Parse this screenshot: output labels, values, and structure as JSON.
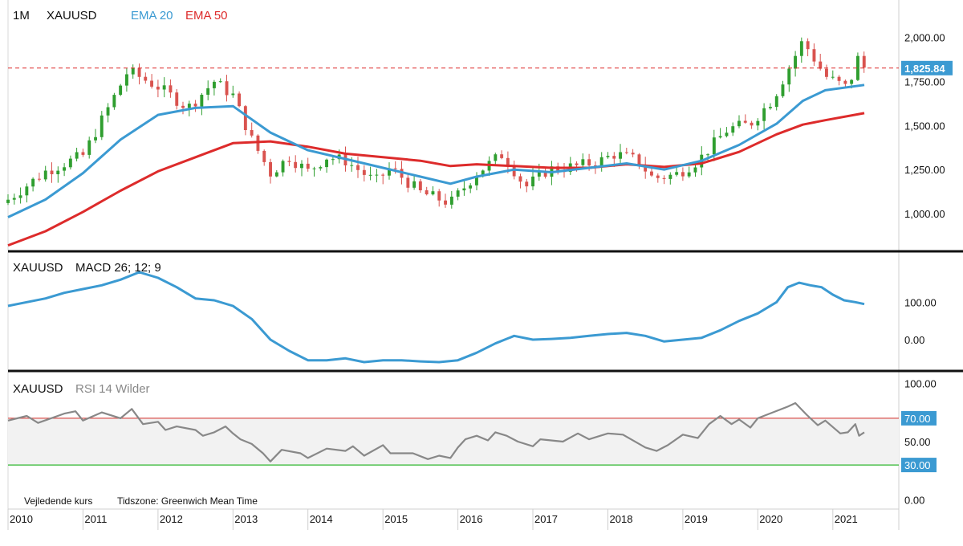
{
  "chart_data": [
    {
      "type": "candlestick",
      "title_interval": "1M",
      "title_symbol": "XAUUSD",
      "legend": [
        {
          "name": "EMA 20",
          "color": "#3b9ad2"
        },
        {
          "name": "EMA 50",
          "color": "#dd2b2b"
        }
      ],
      "x_range": [
        2010.0,
        2021.88
      ],
      "y_range": [
        800,
        2130
      ],
      "y_ticks": [
        "1,000.00",
        "1,250.00",
        "1,500.00",
        "1,750.00",
        "2,000.00"
      ],
      "y_tick_values": [
        1000,
        1250,
        1500,
        1750,
        2000
      ],
      "last_price_label": "1,825.84",
      "last_price": 1825.84,
      "last_price_color": "#3b9ad2",
      "dashed_line_color": "#dd2b2b",
      "up_color": "#2f9e2f",
      "down_color": "#d9534f",
      "candle_anchors": [
        {
          "t": 2010.0,
          "c": 1080
        },
        {
          "t": 2010.5,
          "c": 1240
        },
        {
          "t": 2011.0,
          "c": 1330
        },
        {
          "t": 2011.6,
          "c": 1810
        },
        {
          "t": 2012.0,
          "c": 1720
        },
        {
          "t": 2012.4,
          "c": 1600
        },
        {
          "t": 2012.75,
          "c": 1750
        },
        {
          "t": 2013.0,
          "c": 1670
        },
        {
          "t": 2013.25,
          "c": 1420
        },
        {
          "t": 2013.5,
          "c": 1230
        },
        {
          "t": 2013.75,
          "c": 1320
        },
        {
          "t": 2014.0,
          "c": 1240
        },
        {
          "t": 2014.25,
          "c": 1320
        },
        {
          "t": 2014.5,
          "c": 1300
        },
        {
          "t": 2014.9,
          "c": 1180
        },
        {
          "t": 2015.1,
          "c": 1260
        },
        {
          "t": 2015.5,
          "c": 1120
        },
        {
          "t": 2015.9,
          "c": 1060
        },
        {
          "t": 2016.25,
          "c": 1230
        },
        {
          "t": 2016.6,
          "c": 1340
        },
        {
          "t": 2016.9,
          "c": 1150
        },
        {
          "t": 2017.2,
          "c": 1250
        },
        {
          "t": 2017.6,
          "c": 1270
        },
        {
          "t": 2017.9,
          "c": 1300
        },
        {
          "t": 2018.1,
          "c": 1340
        },
        {
          "t": 2018.4,
          "c": 1300
        },
        {
          "t": 2018.6,
          "c": 1200
        },
        {
          "t": 2018.9,
          "c": 1220
        },
        {
          "t": 2019.2,
          "c": 1300
        },
        {
          "t": 2019.6,
          "c": 1480
        },
        {
          "t": 2019.9,
          "c": 1510
        },
        {
          "t": 2020.2,
          "c": 1650
        },
        {
          "t": 2020.6,
          "c": 1980
        },
        {
          "t": 2020.9,
          "c": 1780
        },
        {
          "t": 2021.2,
          "c": 1710
        },
        {
          "t": 2021.35,
          "c": 1900
        },
        {
          "t": 2021.42,
          "c": 1825
        }
      ],
      "ema20": [
        {
          "t": 2010.0,
          "v": 980
        },
        {
          "t": 2010.5,
          "v": 1080
        },
        {
          "t": 2011.0,
          "v": 1230
        },
        {
          "t": 2011.5,
          "v": 1420
        },
        {
          "t": 2012.0,
          "v": 1560
        },
        {
          "t": 2012.5,
          "v": 1600
        },
        {
          "t": 2013.0,
          "v": 1610
        },
        {
          "t": 2013.5,
          "v": 1460
        },
        {
          "t": 2014.0,
          "v": 1360
        },
        {
          "t": 2014.5,
          "v": 1310
        },
        {
          "t": 2015.0,
          "v": 1260
        },
        {
          "t": 2015.5,
          "v": 1210
        },
        {
          "t": 2015.9,
          "v": 1170
        },
        {
          "t": 2016.25,
          "v": 1210
        },
        {
          "t": 2016.75,
          "v": 1250
        },
        {
          "t": 2017.25,
          "v": 1235
        },
        {
          "t": 2017.75,
          "v": 1260
        },
        {
          "t": 2018.25,
          "v": 1285
        },
        {
          "t": 2018.75,
          "v": 1250
        },
        {
          "t": 2019.25,
          "v": 1300
        },
        {
          "t": 2019.75,
          "v": 1390
        },
        {
          "t": 2020.25,
          "v": 1510
        },
        {
          "t": 2020.6,
          "v": 1640
        },
        {
          "t": 2020.9,
          "v": 1700
        },
        {
          "t": 2021.42,
          "v": 1730
        }
      ],
      "ema50": [
        {
          "t": 2010.0,
          "v": 820
        },
        {
          "t": 2010.5,
          "v": 900
        },
        {
          "t": 2011.0,
          "v": 1010
        },
        {
          "t": 2011.5,
          "v": 1130
        },
        {
          "t": 2012.0,
          "v": 1240
        },
        {
          "t": 2012.5,
          "v": 1320
        },
        {
          "t": 2013.0,
          "v": 1400
        },
        {
          "t": 2013.5,
          "v": 1410
        },
        {
          "t": 2014.0,
          "v": 1380
        },
        {
          "t": 2014.5,
          "v": 1340
        },
        {
          "t": 2015.0,
          "v": 1320
        },
        {
          "t": 2015.5,
          "v": 1300
        },
        {
          "t": 2015.9,
          "v": 1270
        },
        {
          "t": 2016.25,
          "v": 1280
        },
        {
          "t": 2016.75,
          "v": 1270
        },
        {
          "t": 2017.25,
          "v": 1260
        },
        {
          "t": 2017.75,
          "v": 1260
        },
        {
          "t": 2018.25,
          "v": 1280
        },
        {
          "t": 2018.75,
          "v": 1265
        },
        {
          "t": 2019.25,
          "v": 1285
        },
        {
          "t": 2019.75,
          "v": 1350
        },
        {
          "t": 2020.25,
          "v": 1450
        },
        {
          "t": 2020.6,
          "v": 1505
        },
        {
          "t": 2020.9,
          "v": 1530
        },
        {
          "t": 2021.42,
          "v": 1570
        }
      ]
    },
    {
      "type": "line",
      "title_symbol": "XAUUSD",
      "title_indicator": "MACD 26; 12; 9",
      "x_range": [
        2010.0,
        2021.88
      ],
      "y_range": [
        -75,
        225
      ],
      "y_ticks": [
        "0.00",
        "100.00"
      ],
      "y_tick_values": [
        0,
        100
      ],
      "color": "#3b9ad2",
      "points": [
        {
          "t": 2010.0,
          "v": 90
        },
        {
          "t": 2010.25,
          "v": 100
        },
        {
          "t": 2010.5,
          "v": 110
        },
        {
          "t": 2010.75,
          "v": 125
        },
        {
          "t": 2011.0,
          "v": 135
        },
        {
          "t": 2011.25,
          "v": 145
        },
        {
          "t": 2011.5,
          "v": 160
        },
        {
          "t": 2011.75,
          "v": 180
        },
        {
          "t": 2012.0,
          "v": 165
        },
        {
          "t": 2012.25,
          "v": 140
        },
        {
          "t": 2012.5,
          "v": 110
        },
        {
          "t": 2012.75,
          "v": 105
        },
        {
          "t": 2013.0,
          "v": 90
        },
        {
          "t": 2013.25,
          "v": 55
        },
        {
          "t": 2013.5,
          "v": 0
        },
        {
          "t": 2013.75,
          "v": -30
        },
        {
          "t": 2014.0,
          "v": -55
        },
        {
          "t": 2014.25,
          "v": -55
        },
        {
          "t": 2014.5,
          "v": -50
        },
        {
          "t": 2014.75,
          "v": -60
        },
        {
          "t": 2015.0,
          "v": -55
        },
        {
          "t": 2015.25,
          "v": -55
        },
        {
          "t": 2015.5,
          "v": -58
        },
        {
          "t": 2015.75,
          "v": -60
        },
        {
          "t": 2016.0,
          "v": -55
        },
        {
          "t": 2016.25,
          "v": -35
        },
        {
          "t": 2016.5,
          "v": -10
        },
        {
          "t": 2016.75,
          "v": 10
        },
        {
          "t": 2017.0,
          "v": 0
        },
        {
          "t": 2017.25,
          "v": 2
        },
        {
          "t": 2017.5,
          "v": 5
        },
        {
          "t": 2017.75,
          "v": 10
        },
        {
          "t": 2018.0,
          "v": 15
        },
        {
          "t": 2018.25,
          "v": 18
        },
        {
          "t": 2018.5,
          "v": 10
        },
        {
          "t": 2018.75,
          "v": -5
        },
        {
          "t": 2019.0,
          "v": 0
        },
        {
          "t": 2019.25,
          "v": 5
        },
        {
          "t": 2019.5,
          "v": 25
        },
        {
          "t": 2019.75,
          "v": 50
        },
        {
          "t": 2020.0,
          "v": 70
        },
        {
          "t": 2020.25,
          "v": 100
        },
        {
          "t": 2020.4,
          "v": 140
        },
        {
          "t": 2020.55,
          "v": 152
        },
        {
          "t": 2020.7,
          "v": 145
        },
        {
          "t": 2020.85,
          "v": 140
        },
        {
          "t": 2021.0,
          "v": 120
        },
        {
          "t": 2021.15,
          "v": 105
        },
        {
          "t": 2021.3,
          "v": 100
        },
        {
          "t": 2021.42,
          "v": 95
        }
      ]
    },
    {
      "type": "line",
      "title_symbol": "XAUUSD",
      "title_indicator": "RSI 14 Wilder",
      "x_range": [
        2010.0,
        2021.88
      ],
      "y_range": [
        -5,
        105
      ],
      "y_ticks": [
        "0.00",
        "50.00",
        "100.00"
      ],
      "y_tick_values": [
        0,
        50,
        100
      ],
      "overbought": 70,
      "oversold": 30,
      "overbought_label": "70.00",
      "oversold_label": "30.00",
      "color": "#888888",
      "points": [
        {
          "t": 2010.0,
          "v": 68
        },
        {
          "t": 2010.25,
          "v": 72
        },
        {
          "t": 2010.4,
          "v": 66
        },
        {
          "t": 2010.75,
          "v": 74
        },
        {
          "t": 2010.9,
          "v": 76
        },
        {
          "t": 2011.0,
          "v": 68
        },
        {
          "t": 2011.25,
          "v": 75
        },
        {
          "t": 2011.5,
          "v": 70
        },
        {
          "t": 2011.65,
          "v": 78
        },
        {
          "t": 2011.8,
          "v": 65
        },
        {
          "t": 2012.0,
          "v": 67
        },
        {
          "t": 2012.1,
          "v": 60
        },
        {
          "t": 2012.25,
          "v": 63
        },
        {
          "t": 2012.5,
          "v": 60
        },
        {
          "t": 2012.6,
          "v": 55
        },
        {
          "t": 2012.75,
          "v": 58
        },
        {
          "t": 2012.9,
          "v": 63
        },
        {
          "t": 2013.0,
          "v": 57
        },
        {
          "t": 2013.1,
          "v": 52
        },
        {
          "t": 2013.25,
          "v": 48
        },
        {
          "t": 2013.4,
          "v": 40
        },
        {
          "t": 2013.5,
          "v": 33
        },
        {
          "t": 2013.65,
          "v": 43
        },
        {
          "t": 2013.9,
          "v": 40
        },
        {
          "t": 2014.0,
          "v": 36
        },
        {
          "t": 2014.25,
          "v": 44
        },
        {
          "t": 2014.5,
          "v": 42
        },
        {
          "t": 2014.6,
          "v": 46
        },
        {
          "t": 2014.75,
          "v": 38
        },
        {
          "t": 2015.0,
          "v": 47
        },
        {
          "t": 2015.1,
          "v": 40
        },
        {
          "t": 2015.4,
          "v": 40
        },
        {
          "t": 2015.6,
          "v": 35
        },
        {
          "t": 2015.75,
          "v": 38
        },
        {
          "t": 2015.9,
          "v": 36
        },
        {
          "t": 2016.0,
          "v": 45
        },
        {
          "t": 2016.1,
          "v": 52
        },
        {
          "t": 2016.25,
          "v": 55
        },
        {
          "t": 2016.4,
          "v": 51
        },
        {
          "t": 2016.5,
          "v": 58
        },
        {
          "t": 2016.65,
          "v": 55
        },
        {
          "t": 2016.8,
          "v": 50
        },
        {
          "t": 2017.0,
          "v": 46
        },
        {
          "t": 2017.1,
          "v": 52
        },
        {
          "t": 2017.4,
          "v": 50
        },
        {
          "t": 2017.6,
          "v": 57
        },
        {
          "t": 2017.75,
          "v": 52
        },
        {
          "t": 2017.9,
          "v": 55
        },
        {
          "t": 2018.0,
          "v": 57
        },
        {
          "t": 2018.2,
          "v": 56
        },
        {
          "t": 2018.5,
          "v": 45
        },
        {
          "t": 2018.65,
          "v": 42
        },
        {
          "t": 2018.8,
          "v": 47
        },
        {
          "t": 2019.0,
          "v": 56
        },
        {
          "t": 2019.2,
          "v": 53
        },
        {
          "t": 2019.35,
          "v": 65
        },
        {
          "t": 2019.5,
          "v": 72
        },
        {
          "t": 2019.65,
          "v": 65
        },
        {
          "t": 2019.75,
          "v": 69
        },
        {
          "t": 2019.9,
          "v": 62
        },
        {
          "t": 2020.0,
          "v": 70
        },
        {
          "t": 2020.2,
          "v": 75
        },
        {
          "t": 2020.4,
          "v": 80
        },
        {
          "t": 2020.5,
          "v": 83
        },
        {
          "t": 2020.65,
          "v": 73
        },
        {
          "t": 2020.8,
          "v": 64
        },
        {
          "t": 2020.9,
          "v": 68
        },
        {
          "t": 2021.1,
          "v": 57
        },
        {
          "t": 2021.2,
          "v": 58
        },
        {
          "t": 2021.3,
          "v": 65
        },
        {
          "t": 2021.35,
          "v": 55
        },
        {
          "t": 2021.42,
          "v": 58
        }
      ]
    }
  ],
  "x_axis_labels": [
    "2010",
    "2011",
    "2012",
    "2013",
    "2014",
    "2015",
    "2016",
    "2017",
    "2018",
    "2019",
    "2020",
    "2021"
  ],
  "footer": {
    "price_note": "Vejledende kurs",
    "timezone": "Tidszone: Greenwich Mean Time"
  }
}
